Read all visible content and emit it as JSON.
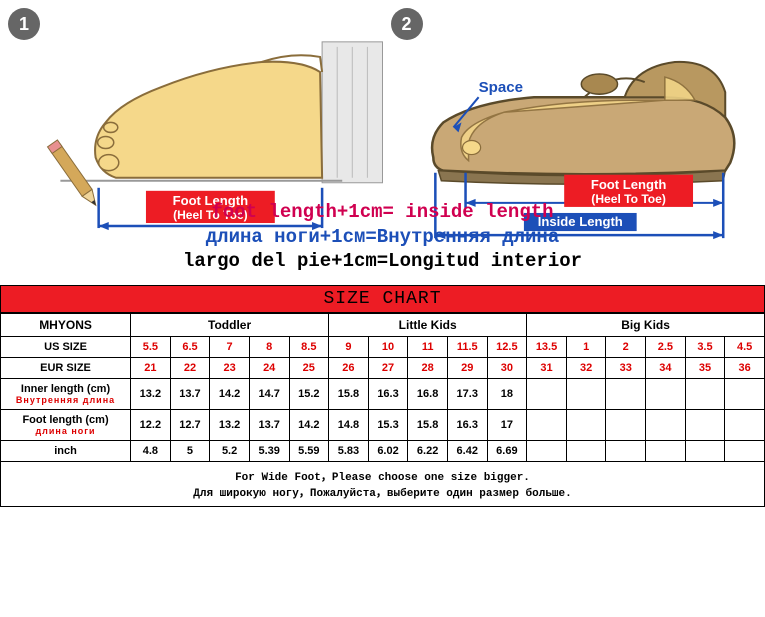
{
  "diagrams": {
    "step1_badge": "1",
    "step2_badge": "2",
    "foot_length_label": "Foot Length",
    "heel_to_toe_label": "(Heel To Toe)",
    "space_label": "Space",
    "inside_length_label": "Inside Length",
    "label_bg_color": "#ed1c24",
    "inside_label_bg_color": "#1c4fb8",
    "label_text_color": "#ffffff",
    "bracket_color": "#1c4fb8",
    "foot_color": "#f5d88a",
    "foot_outline": "#8a6d3b",
    "shoe_color": "#c9a876",
    "pencil_body": "#d4a85a",
    "pencil_tip": "#333"
  },
  "formulas": {
    "en": "foot length+1cm= inside length",
    "ru": "длина ноги+1см=Внутренняя длина",
    "es": "largo del pie+1cm=Longitud interior",
    "en_color": "#d00050",
    "ru_color": "#1c4fb8",
    "es_color": "#000000"
  },
  "chart": {
    "title": "SIZE CHART",
    "brand": "MHYONS",
    "groups": [
      "Toddler",
      "Little Kids",
      "Big Kids"
    ],
    "group_spans": [
      5,
      5,
      6
    ],
    "row_labels": {
      "us_size": "US SIZE",
      "eur_size": "EUR SIZE",
      "inner_length": "Inner length (cm)",
      "inner_length_ru": "Внутренняя длина",
      "foot_length": "Foot length (cm)",
      "foot_length_ru": "длина ноги",
      "inch": "inch"
    },
    "us_size": [
      "5.5",
      "6.5",
      "7",
      "8",
      "8.5",
      "9",
      "10",
      "11",
      "11.5",
      "12.5",
      "13.5",
      "1",
      "2",
      "2.5",
      "3.5",
      "4.5"
    ],
    "eur_size": [
      "21",
      "22",
      "23",
      "24",
      "25",
      "26",
      "27",
      "28",
      "29",
      "30",
      "31",
      "32",
      "33",
      "34",
      "35",
      "36"
    ],
    "inner_len": [
      "13.2",
      "13.7",
      "14.2",
      "14.7",
      "15.2",
      "15.8",
      "16.3",
      "16.8",
      "17.3",
      "18",
      "",
      "",
      "",
      "",
      "",
      ""
    ],
    "foot_len": [
      "12.2",
      "12.7",
      "13.2",
      "13.7",
      "14.2",
      "14.8",
      "15.3",
      "15.8",
      "16.3",
      "17",
      "",
      "",
      "",
      "",
      "",
      ""
    ],
    "inch": [
      "4.8",
      "5",
      "5.2",
      "5.39",
      "5.59",
      "5.83",
      "6.02",
      "6.22",
      "6.42",
      "6.69",
      "",
      "",
      "",
      "",
      "",
      ""
    ],
    "footer_en": "For Wide Foot，Please choose one size bigger.",
    "footer_ru": "Для широкую ногу，Пожалуйста，выберите один размер больше."
  }
}
